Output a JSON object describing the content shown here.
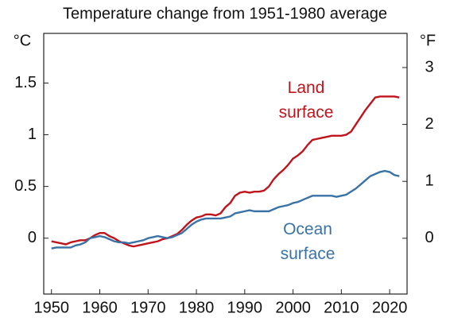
{
  "chart_data": {
    "type": "line",
    "title": "Temperature change from 1951-1980 average",
    "y_label": "°C",
    "y2_label": "°F",
    "x": [
      1950,
      1951,
      1952,
      1953,
      1954,
      1955,
      1956,
      1957,
      1958,
      1959,
      1960,
      1961,
      1962,
      1963,
      1964,
      1965,
      1966,
      1967,
      1968,
      1969,
      1970,
      1971,
      1972,
      1973,
      1974,
      1975,
      1976,
      1977,
      1978,
      1979,
      1980,
      1981,
      1982,
      1983,
      1984,
      1985,
      1986,
      1987,
      1988,
      1989,
      1990,
      1991,
      1992,
      1993,
      1994,
      1995,
      1996,
      1997,
      1998,
      1999,
      2000,
      2001,
      2002,
      2003,
      2004,
      2005,
      2006,
      2007,
      2008,
      2009,
      2010,
      2011,
      2012,
      2013,
      2014,
      2015,
      2016,
      2017,
      2018,
      2019,
      2020,
      2021,
      2022
    ],
    "series": [
      {
        "name": "Land surface",
        "color": "#c0141c",
        "values": [
          -0.03,
          -0.04,
          -0.05,
          -0.06,
          -0.04,
          -0.03,
          -0.02,
          -0.02,
          0.0,
          0.03,
          0.05,
          0.05,
          0.02,
          0.0,
          -0.03,
          -0.05,
          -0.07,
          -0.08,
          -0.07,
          -0.06,
          -0.05,
          -0.04,
          -0.03,
          -0.01,
          0.0,
          0.02,
          0.04,
          0.08,
          0.13,
          0.17,
          0.2,
          0.21,
          0.23,
          0.23,
          0.22,
          0.24,
          0.3,
          0.34,
          0.41,
          0.44,
          0.45,
          0.44,
          0.45,
          0.45,
          0.46,
          0.5,
          0.57,
          0.62,
          0.66,
          0.71,
          0.77,
          0.8,
          0.84,
          0.9,
          0.95,
          0.96,
          0.97,
          0.98,
          0.99,
          0.99,
          0.99,
          1.0,
          1.03,
          1.1,
          1.17,
          1.24,
          1.3,
          1.36,
          1.37,
          1.37,
          1.37,
          1.37,
          1.36
        ]
      },
      {
        "name": "Ocean surface",
        "color": "#3b72a6",
        "values": [
          -0.1,
          -0.09,
          -0.09,
          -0.09,
          -0.09,
          -0.07,
          -0.06,
          -0.04,
          0.0,
          0.01,
          0.02,
          0.01,
          -0.01,
          -0.03,
          -0.04,
          -0.04,
          -0.05,
          -0.04,
          -0.03,
          -0.02,
          0.0,
          0.01,
          0.02,
          0.01,
          0.0,
          0.01,
          0.03,
          0.05,
          0.09,
          0.13,
          0.16,
          0.18,
          0.19,
          0.19,
          0.19,
          0.19,
          0.2,
          0.21,
          0.24,
          0.25,
          0.26,
          0.27,
          0.26,
          0.26,
          0.26,
          0.26,
          0.28,
          0.3,
          0.31,
          0.32,
          0.34,
          0.35,
          0.37,
          0.39,
          0.41,
          0.41,
          0.41,
          0.41,
          0.41,
          0.4,
          0.41,
          0.42,
          0.45,
          0.48,
          0.52,
          0.56,
          0.6,
          0.62,
          0.64,
          0.65,
          0.64,
          0.61,
          0.6
        ]
      }
    ],
    "xlim": [
      1948.4,
      2023.6
    ],
    "xticks": [
      1950,
      1960,
      1970,
      1980,
      1990,
      2000,
      2010,
      2020
    ],
    "ylim": [
      -0.54,
      1.98
    ],
    "yticks": [
      0,
      0.5,
      1,
      1.5
    ],
    "y2lim": [
      -0.98,
      3.6
    ],
    "y2ticks": [
      0,
      1,
      2,
      3
    ]
  }
}
